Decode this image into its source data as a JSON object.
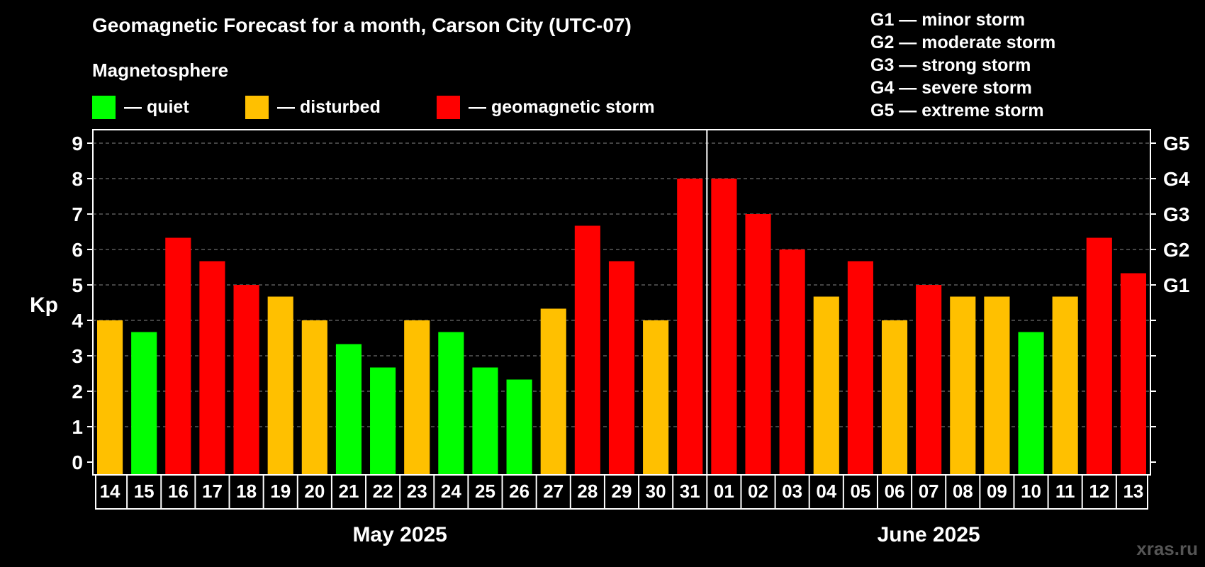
{
  "title": "Geomagnetic Forecast for a month, Carson City (UTC-07)",
  "legend_heading": "Magnetosphere",
  "legend": [
    {
      "label": "— quiet",
      "color": "#00ff00"
    },
    {
      "label": "— disturbed",
      "color": "#ffc000"
    },
    {
      "label": "— geomagnetic storm",
      "color": "#ff0000"
    }
  ],
  "g_legend": [
    "G1 — minor storm",
    "G2 — moderate storm",
    "G3 — strong storm",
    "G4 — severe storm",
    "G5 — extreme storm"
  ],
  "watermark": "xras.ru",
  "chart_data": {
    "type": "bar",
    "ylabel": "Kp",
    "ylim": [
      0,
      9
    ],
    "yticks": [
      "0",
      "1",
      "2",
      "3",
      "4",
      "5",
      "6",
      "7",
      "8",
      "9"
    ],
    "right_ticks": [
      {
        "value": 5,
        "label": "G1"
      },
      {
        "value": 6,
        "label": "G2"
      },
      {
        "value": 7,
        "label": "G3"
      },
      {
        "value": 8,
        "label": "G4"
      },
      {
        "value": 9,
        "label": "G5"
      }
    ],
    "grid": "horizontal dashed",
    "categories": [
      "14",
      "15",
      "16",
      "17",
      "18",
      "19",
      "20",
      "21",
      "22",
      "23",
      "24",
      "25",
      "26",
      "27",
      "28",
      "29",
      "30",
      "31",
      "01",
      "02",
      "03",
      "04",
      "05",
      "06",
      "07",
      "08",
      "09",
      "10",
      "11",
      "12",
      "13"
    ],
    "values": [
      4,
      3.67,
      6.33,
      5.67,
      5,
      4.67,
      4,
      3.33,
      2.67,
      4,
      3.67,
      2.67,
      2.33,
      4.33,
      6.67,
      5.67,
      4,
      8,
      8,
      7,
      6,
      4.67,
      5.67,
      4,
      5,
      4.67,
      4.67,
      3.67,
      4.67,
      6.33,
      5.33
    ],
    "levels": [
      "disturbed",
      "quiet",
      "storm",
      "storm",
      "storm",
      "disturbed",
      "disturbed",
      "quiet",
      "quiet",
      "disturbed",
      "quiet",
      "quiet",
      "quiet",
      "disturbed",
      "storm",
      "storm",
      "disturbed",
      "storm",
      "storm",
      "storm",
      "storm",
      "disturbed",
      "storm",
      "disturbed",
      "storm",
      "disturbed",
      "disturbed",
      "quiet",
      "disturbed",
      "storm",
      "storm"
    ],
    "level_colors": {
      "quiet": "#00ff00",
      "disturbed": "#ffc000",
      "storm": "#ff0000"
    },
    "months": [
      {
        "label": "May 2025",
        "days": 18
      },
      {
        "label": "June 2025",
        "days": 13
      }
    ]
  }
}
